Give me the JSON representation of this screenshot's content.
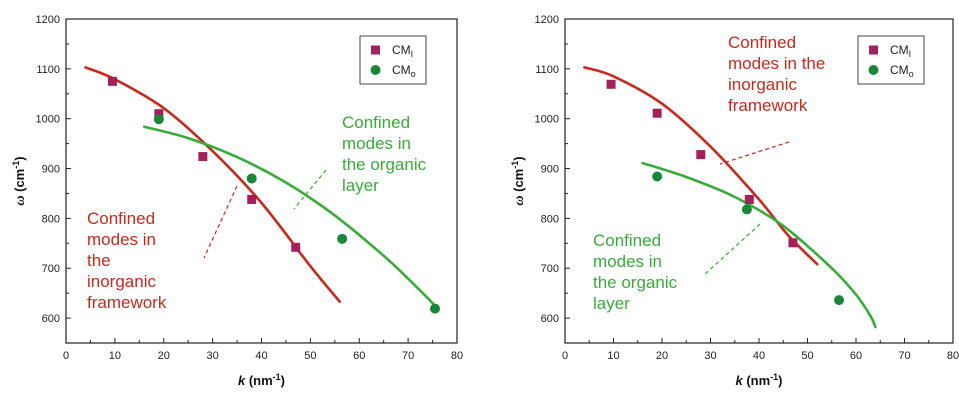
{
  "chart_data": [
    {
      "type": "scatter",
      "xlabel_var": "k",
      "xlabel_unit": " (nm",
      "xlabel_exp": "-1",
      "xlabel_close": ")",
      "ylabel_var": "ω",
      "ylabel_unit": " (cm",
      "ylabel_exp": "-1",
      "ylabel_close": ")",
      "xlim": [
        0,
        80
      ],
      "ylim": [
        550,
        1200
      ],
      "xticks": [
        0,
        10,
        20,
        30,
        40,
        50,
        60,
        70,
        80
      ],
      "yticks": [
        600,
        700,
        800,
        900,
        1000,
        1100,
        1200
      ],
      "grid": false,
      "legend_position": "top-right",
      "series": [
        {
          "name": "CM",
          "name_sub": "I",
          "marker": "square",
          "color": "#a3205a",
          "points": [
            [
              9.5,
              1075
            ],
            [
              19,
              1010
            ],
            [
              28,
              924
            ],
            [
              38,
              838
            ],
            [
              47,
              742
            ]
          ],
          "fit_color": "#c8291c",
          "fit": [
            [
              4,
              1103
            ],
            [
              10,
              1079
            ],
            [
              20,
              1021
            ],
            [
              30,
              935
            ],
            [
              40,
              831
            ],
            [
              50,
              704
            ],
            [
              56,
              633
            ]
          ]
        },
        {
          "name": "CM",
          "name_sub": "o",
          "marker": "circle",
          "color": "#19873a",
          "points": [
            [
              19,
              999
            ],
            [
              38,
              880
            ],
            [
              56.5,
              759
            ],
            [
              75.5,
              619
            ]
          ],
          "fit_color": "#38ac38",
          "fit": [
            [
              16,
              984
            ],
            [
              25,
              961
            ],
            [
              35,
              923
            ],
            [
              45,
              872
            ],
            [
              55,
              806
            ],
            [
              65,
              725
            ],
            [
              70,
              679
            ],
            [
              75,
              630
            ],
            [
              76,
              618
            ]
          ]
        }
      ],
      "annotations": [
        {
          "lines": [
            "Confined",
            "modes in",
            "the",
            "inorganic",
            "framework"
          ],
          "color": "#c8291c"
        },
        {
          "lines": [
            "Confined",
            "modes in",
            "the organic",
            "layer"
          ],
          "color": "#38ac38"
        }
      ]
    },
    {
      "type": "scatter",
      "xlabel_var": "k",
      "xlabel_unit": " (nm",
      "xlabel_exp": "-1",
      "xlabel_close": ")",
      "ylabel_var": "ω",
      "ylabel_unit": " (cm",
      "ylabel_exp": "-1",
      "ylabel_close": ")",
      "xlim": [
        0,
        80
      ],
      "ylim": [
        550,
        1200
      ],
      "xticks": [
        0,
        10,
        20,
        30,
        40,
        50,
        60,
        70,
        80
      ],
      "yticks": [
        600,
        700,
        800,
        900,
        1000,
        1100,
        1200
      ],
      "grid": false,
      "legend_position": "top-right",
      "series": [
        {
          "name": "CM",
          "name_sub": "I",
          "marker": "square",
          "color": "#a3205a",
          "points": [
            [
              9.5,
              1069
            ],
            [
              19,
              1011
            ],
            [
              28,
              928
            ],
            [
              38,
              838
            ],
            [
              47,
              751
            ]
          ],
          "fit_color": "#c8291c",
          "fit": [
            [
              4,
              1103
            ],
            [
              10,
              1085
            ],
            [
              20,
              1030
            ],
            [
              30,
              944
            ],
            [
              40,
              838
            ],
            [
              46,
              766
            ],
            [
              52,
              708
            ]
          ]
        },
        {
          "name": "CM",
          "name_sub": "o",
          "marker": "circle",
          "color": "#19873a",
          "points": [
            [
              19,
              884
            ],
            [
              37.5,
              818
            ],
            [
              56.5,
              636
            ]
          ],
          "fit_color": "#38ac38",
          "fit": [
            [
              16,
              911
            ],
            [
              25,
              883
            ],
            [
              35,
              843
            ],
            [
              45,
              785
            ],
            [
              55,
              700
            ],
            [
              60,
              647
            ],
            [
              63,
              604
            ],
            [
              64,
              582
            ]
          ]
        }
      ],
      "annotations": [
        {
          "lines": [
            "Confined",
            "modes in the",
            "inorganic",
            "framework"
          ],
          "color": "#c8291c"
        },
        {
          "lines": [
            "Confined",
            "modes in",
            "the organic",
            "layer"
          ],
          "color": "#38ac38"
        }
      ]
    }
  ]
}
